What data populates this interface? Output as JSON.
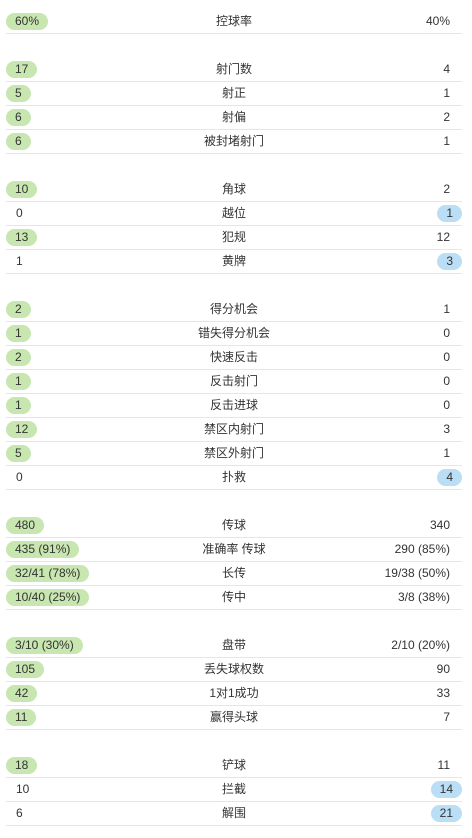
{
  "groups": [
    [
      {
        "label": "控球率",
        "home": "60%",
        "away": "40%",
        "winner": "home"
      }
    ],
    [
      {
        "label": "射门数",
        "home": "17",
        "away": "4",
        "winner": "home"
      },
      {
        "label": "射正",
        "home": "5",
        "away": "1",
        "winner": "home"
      },
      {
        "label": "射偏",
        "home": "6",
        "away": "2",
        "winner": "home"
      },
      {
        "label": "被封堵射门",
        "home": "6",
        "away": "1",
        "winner": "home"
      }
    ],
    [
      {
        "label": "角球",
        "home": "10",
        "away": "2",
        "winner": "home"
      },
      {
        "label": "越位",
        "home": "0",
        "away": "1",
        "winner": "away"
      },
      {
        "label": "犯规",
        "home": "13",
        "away": "12",
        "winner": "home"
      },
      {
        "label": "黄牌",
        "home": "1",
        "away": "3",
        "winner": "away"
      }
    ],
    [
      {
        "label": "得分机会",
        "home": "2",
        "away": "1",
        "winner": "home"
      },
      {
        "label": "错失得分机会",
        "home": "1",
        "away": "0",
        "winner": "home"
      },
      {
        "label": "快速反击",
        "home": "2",
        "away": "0",
        "winner": "home"
      },
      {
        "label": "反击射门",
        "home": "1",
        "away": "0",
        "winner": "home"
      },
      {
        "label": "反击进球",
        "home": "1",
        "away": "0",
        "winner": "home"
      },
      {
        "label": "禁区内射门",
        "home": "12",
        "away": "3",
        "winner": "home"
      },
      {
        "label": "禁区外射门",
        "home": "5",
        "away": "1",
        "winner": "home"
      },
      {
        "label": "扑救",
        "home": "0",
        "away": "4",
        "winner": "away"
      }
    ],
    [
      {
        "label": "传球",
        "home": "480",
        "away": "340",
        "winner": "home"
      },
      {
        "label": "准确率 传球",
        "home": "435 (91%)",
        "away": "290 (85%)",
        "winner": "home"
      },
      {
        "label": "长传",
        "home": "32/41 (78%)",
        "away": "19/38 (50%)",
        "winner": "home"
      },
      {
        "label": "传中",
        "home": "10/40 (25%)",
        "away": "3/8 (38%)",
        "winner": "home"
      }
    ],
    [
      {
        "label": "盘带",
        "home": "3/10 (30%)",
        "away": "2/10 (20%)",
        "winner": "home"
      },
      {
        "label": "丢失球权数",
        "home": "105",
        "away": "90",
        "winner": "home"
      },
      {
        "label": "1对1成功",
        "home": "42",
        "away": "33",
        "winner": "home"
      },
      {
        "label": "赢得头球",
        "home": "11",
        "away": "7",
        "winner": "home"
      }
    ],
    [
      {
        "label": "铲球",
        "home": "18",
        "away": "11",
        "winner": "home"
      },
      {
        "label": "拦截",
        "home": "10",
        "away": "14",
        "winner": "away"
      },
      {
        "label": "解围",
        "home": "6",
        "away": "21",
        "winner": "away"
      }
    ]
  ],
  "colors": {
    "home_highlight": "#c8e6b0",
    "away_highlight": "#b9def5"
  }
}
